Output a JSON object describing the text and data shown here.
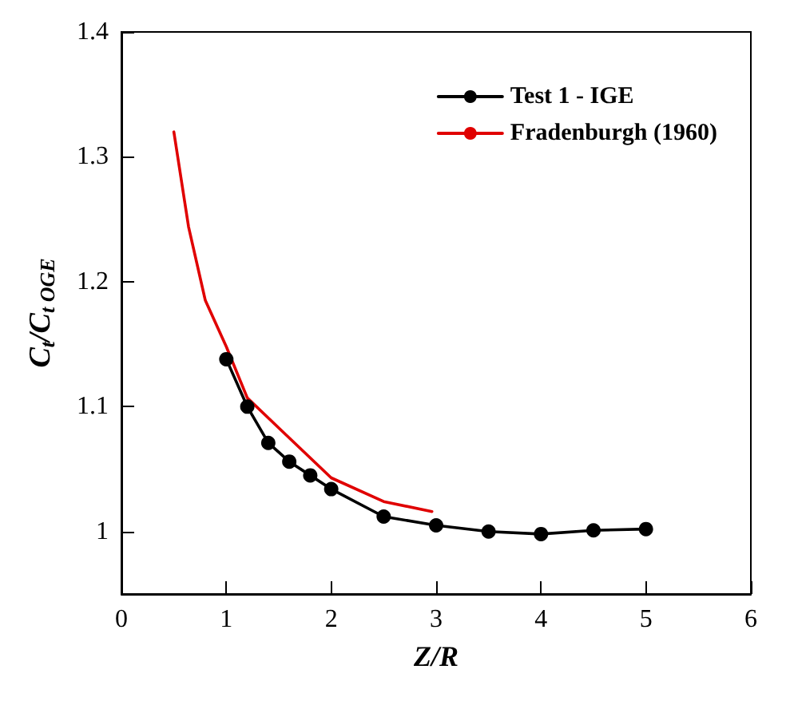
{
  "chart_data": {
    "type": "line",
    "xlabel": "Z/R",
    "ylabel": "C$_{t}$/C$_{t OGE}$",
    "xlim": [
      0,
      6
    ],
    "xticks": [
      0,
      1,
      2,
      3,
      4,
      5,
      6
    ],
    "ylim": [
      0.95,
      1.4
    ],
    "yticks": [
      1,
      1.1,
      1.2,
      1.3,
      1.4
    ],
    "grid": false,
    "legend": "top right",
    "series": [
      {
        "name": "Test 1 - IGE",
        "color": "#000000",
        "marker": "circle",
        "x": [
          1,
          1.2,
          1.4,
          1.6,
          1.8,
          2,
          2.5,
          3,
          3.5,
          4,
          4.5,
          5
        ],
        "values": [
          1.138,
          1.1,
          1.071,
          1.056,
          1.045,
          1.034,
          1.012,
          1.005,
          1.0,
          0.998,
          1.001,
          1.002
        ]
      },
      {
        "name": "Fradenburgh (1960)",
        "color": "#e00000",
        "marker": "none",
        "x": [
          0.5,
          0.64,
          0.8,
          1,
          1.2,
          1.5,
          2,
          2.5,
          2.96
        ],
        "values": [
          1.32,
          1.244,
          1.185,
          1.148,
          1.107,
          1.083,
          1.043,
          1.024,
          1.016
        ]
      }
    ]
  }
}
